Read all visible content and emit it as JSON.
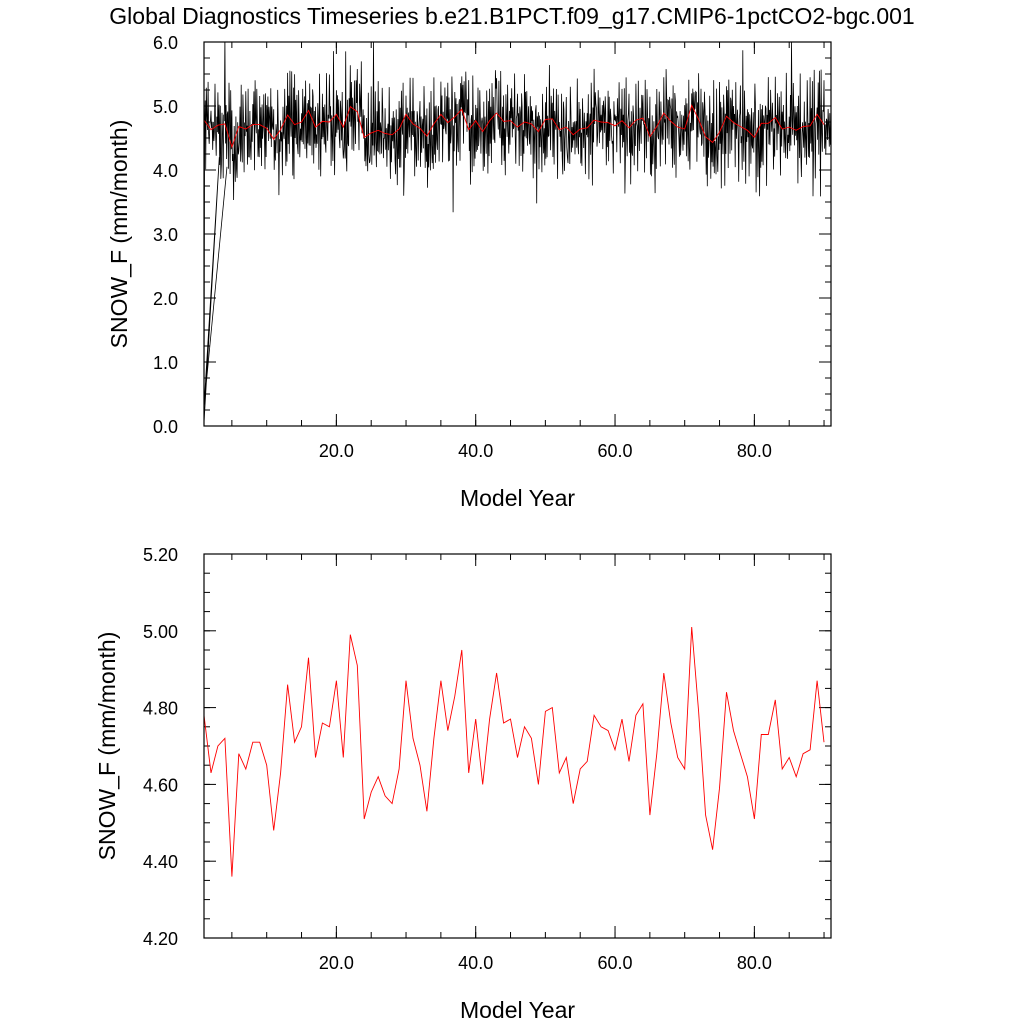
{
  "title": "Global Diagnostics Timeseries b.e21.B1PCT.f09_g17.CMIP6-1pctCO2-bgc.001",
  "colors": {
    "monthly": "#000000",
    "annual": "#ff0000",
    "frame": "#000000",
    "background": "#ffffff"
  },
  "chart_data": [
    {
      "type": "line",
      "xlabel": "Model Year",
      "ylabel": "SNOW_F (mm/month)",
      "xlim": [
        1,
        91
      ],
      "ylim": [
        0,
        6
      ],
      "x_ticks": [
        20,
        40,
        60,
        80
      ],
      "x_tick_labels": [
        "20.0",
        "40.0",
        "60.0",
        "80.0"
      ],
      "y_ticks": [
        0,
        1,
        2,
        3,
        4,
        5,
        6
      ],
      "y_tick_labels": [
        "0.0",
        "1.0",
        "2.0",
        "3.0",
        "4.0",
        "5.0",
        "6.0"
      ],
      "grid": false,
      "legend": "none",
      "monthly_pattern": [
        5.2,
        4.4,
        4.9,
        4.1,
        5.1,
        4.6,
        4.3,
        5.3,
        4.7,
        4.0,
        4.9,
        4.5
      ],
      "monthly_noise_amplitude": 0.35,
      "series": [
        {
          "kind": "monthly",
          "color": "#000000",
          "x_start": 1.0,
          "x_end": 91.0,
          "values": [
            0.05,
            5.3
          ]
        },
        {
          "kind": "annual_mean",
          "color": "#ff0000",
          "x_start": 1.0,
          "x_end": 91.0,
          "source": "annual_values"
        }
      ]
    },
    {
      "type": "line",
      "xlabel": "Model Year",
      "ylabel": "SNOW_F (mm/month)",
      "xlim": [
        1,
        91
      ],
      "ylim": [
        4.2,
        5.2
      ],
      "x_ticks": [
        20,
        40,
        60,
        80
      ],
      "x_tick_labels": [
        "20.0",
        "40.0",
        "60.0",
        "80.0"
      ],
      "y_ticks": [
        4.2,
        4.4,
        4.6,
        4.8,
        5.0,
        5.2
      ],
      "y_tick_labels": [
        "4.20",
        "4.40",
        "4.60",
        "4.80",
        "5.00",
        "5.20"
      ],
      "grid": false,
      "legend": "none",
      "series": [
        {
          "color": "#ff0000",
          "x_start": 1.0,
          "x_step": 1.0,
          "values": [
            4.78,
            4.63,
            4.7,
            4.72,
            4.36,
            4.68,
            4.64,
            4.71,
            4.71,
            4.65,
            4.48,
            4.63,
            4.86,
            4.71,
            4.75,
            4.93,
            4.67,
            4.76,
            4.75,
            4.87,
            4.67,
            4.99,
            4.91,
            4.51,
            4.58,
            4.62,
            4.57,
            4.55,
            4.64,
            4.87,
            4.72,
            4.65,
            4.53,
            4.72,
            4.87,
            4.74,
            4.83,
            4.95,
            4.63,
            4.77,
            4.6,
            4.77,
            4.89,
            4.76,
            4.77,
            4.67,
            4.75,
            4.72,
            4.6,
            4.79,
            4.8,
            4.63,
            4.67,
            4.55,
            4.64,
            4.66,
            4.78,
            4.75,
            4.74,
            4.69,
            4.77,
            4.66,
            4.78,
            4.81,
            4.52,
            4.68,
            4.89,
            4.76,
            4.67,
            4.64,
            5.01,
            4.79,
            4.52,
            4.43,
            4.59,
            4.84,
            4.74,
            4.68,
            4.62,
            4.51,
            4.73,
            4.73,
            4.82,
            4.64,
            4.67,
            4.62,
            4.68,
            4.69,
            4.87,
            4.71
          ]
        }
      ]
    }
  ]
}
